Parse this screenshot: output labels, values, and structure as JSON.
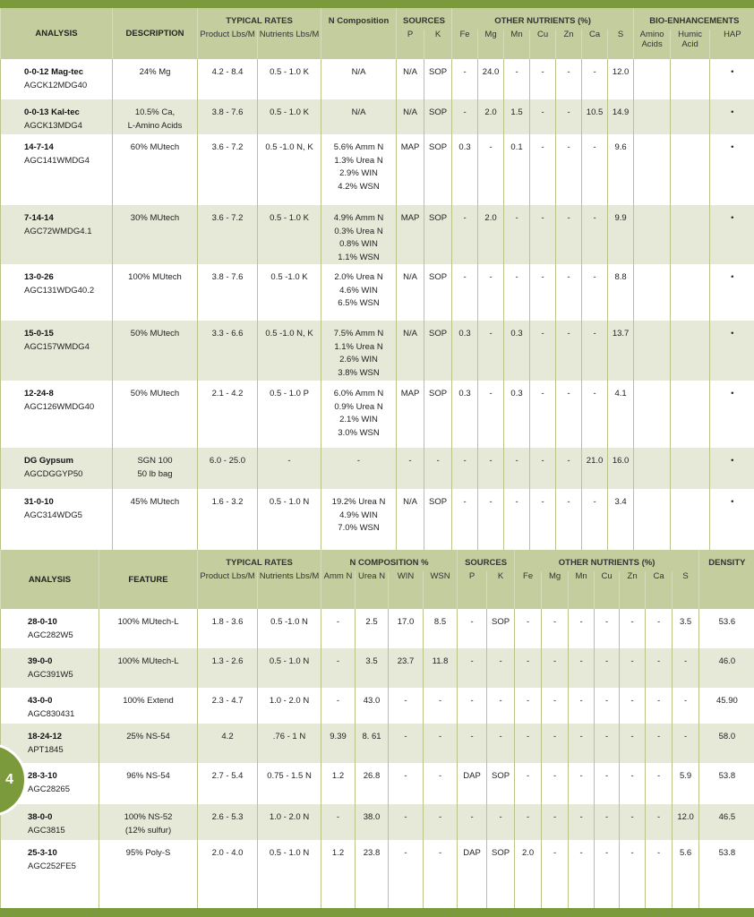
{
  "table1": {
    "headers": {
      "analysis": "ANALYSIS",
      "description": "DESCRIPTION",
      "typical_rates": "TYPICAL RATES",
      "product": "Product Lbs/M",
      "nutrients": "Nutrients Lbs/M",
      "n_composition": "N Composition",
      "sources": "SOURCES",
      "p": "P",
      "k": "K",
      "other_nutrients": "OTHER NUTRIENTS (%)",
      "fe": "Fe",
      "mg": "Mg",
      "mn": "Mn",
      "cu": "Cu",
      "zn": "Zn",
      "ca": "Ca",
      "s": "S",
      "bio": "BIO-ENHANCEMENTS",
      "amino": "Amino Acids",
      "humic": "Humic Acid",
      "hap": "HAP"
    },
    "rows": [
      {
        "analysis": "0-0-12 Mag-tec",
        "code": "AGCK12MDG40",
        "description": [
          "24% Mg"
        ],
        "product": "4.2 - 8.4",
        "nutrients": "0.5 - 1.0 K",
        "n_comp": [
          "N/A"
        ],
        "p": "N/A",
        "k": "SOP",
        "fe": "-",
        "mg": "24.0",
        "mn": "-",
        "cu": "-",
        "zn": "-",
        "ca": "-",
        "s": "12.0",
        "amino": "",
        "humic": "",
        "hap": "•"
      },
      {
        "analysis": "0-0-13 Kal-tec",
        "code": "AGCK13MDG4",
        "description": [
          "10.5% Ca,",
          "L-Amino Acids"
        ],
        "product": "3.8 - 7.6",
        "nutrients": "0.5 - 1.0 K",
        "n_comp": [
          "N/A"
        ],
        "p": "N/A",
        "k": "SOP",
        "fe": "-",
        "mg": "2.0",
        "mn": "1.5",
        "cu": "-",
        "zn": "-",
        "ca": "10.5",
        "s": "14.9",
        "amino": "",
        "humic": "",
        "hap": "•"
      },
      {
        "analysis": "14-7-14",
        "code": "AGC141WMDG4",
        "description": [
          "60% MUtech"
        ],
        "product": "3.6 - 7.2",
        "nutrients": "0.5 -1.0 N, K",
        "n_comp": [
          "5.6% Amm N",
          "1.3% Urea N",
          "2.9% WIN",
          "4.2% WSN"
        ],
        "p": "MAP",
        "k": "SOP",
        "fe": "0.3",
        "mg": "-",
        "mn": "0.1",
        "cu": "-",
        "zn": "-",
        "ca": "-",
        "s": "9.6",
        "amino": "",
        "humic": "",
        "hap": "•"
      },
      {
        "analysis": "7-14-14",
        "code": "AGC72WMDG4.1",
        "description": [
          "30% MUtech"
        ],
        "product": "3.6 - 7.2",
        "nutrients": "0.5 - 1.0 K",
        "n_comp": [
          "4.9% Amm N",
          "0.3% Urea N",
          "0.8% WIN",
          "1.1% WSN"
        ],
        "p": "MAP",
        "k": "SOP",
        "fe": "-",
        "mg": "2.0",
        "mn": "-",
        "cu": "-",
        "zn": "-",
        "ca": "-",
        "s": "9.9",
        "amino": "",
        "humic": "",
        "hap": "•"
      },
      {
        "analysis": "13-0-26",
        "code": "AGC131WDG40.2",
        "description": [
          "100% MUtech"
        ],
        "product": "3.8 - 7.6",
        "nutrients": "0.5 -1.0 K",
        "n_comp": [
          "2.0% Urea N",
          "4.6% WIN",
          "6.5% WSN"
        ],
        "p": "N/A",
        "k": "SOP",
        "fe": "-",
        "mg": "-",
        "mn": "-",
        "cu": "-",
        "zn": "-",
        "ca": "-",
        "s": "8.8",
        "amino": "",
        "humic": "",
        "hap": "•"
      },
      {
        "analysis": "15-0-15",
        "code": "AGC157WMDG4",
        "description": [
          "50% MUtech"
        ],
        "product": "3.3 - 6.6",
        "nutrients": "0.5 -1.0 N, K",
        "n_comp": [
          "7.5% Amm N",
          "1.1% Urea N",
          "2.6% WIN",
          "3.8% WSN"
        ],
        "p": "N/A",
        "k": "SOP",
        "fe": "0.3",
        "mg": "-",
        "mn": "0.3",
        "cu": "-",
        "zn": "-",
        "ca": "-",
        "s": "13.7",
        "amino": "",
        "humic": "",
        "hap": "•"
      },
      {
        "analysis": "12-24-8",
        "code": "AGC126WMDG40",
        "description": [
          "50% MUtech"
        ],
        "product": "2.1 - 4.2",
        "nutrients": "0.5 - 1.0 P",
        "n_comp": [
          "6.0% Amm N",
          "0.9% Urea N",
          "2.1% WIN",
          "3.0% WSN"
        ],
        "p": "MAP",
        "k": "SOP",
        "fe": "0.3",
        "mg": "-",
        "mn": "0.3",
        "cu": "-",
        "zn": "-",
        "ca": "-",
        "s": "4.1",
        "amino": "",
        "humic": "",
        "hap": "•"
      },
      {
        "analysis": "DG Gypsum",
        "code": "AGCDGGYP50",
        "description": [
          "SGN 100",
          "50 lb bag"
        ],
        "product": "6.0 - 25.0",
        "nutrients": "-",
        "n_comp": [
          "-"
        ],
        "p": "-",
        "k": "-",
        "fe": "-",
        "mg": "-",
        "mn": "-",
        "cu": "-",
        "zn": "-",
        "ca": "21.0",
        "s": "16.0",
        "amino": "",
        "humic": "",
        "hap": "•"
      },
      {
        "analysis": "31-0-10",
        "code": "AGC314WDG5",
        "description": [
          "45% MUtech"
        ],
        "product": "1.6 - 3.2",
        "nutrients": "0.5 - 1.0 N",
        "n_comp": [
          "19.2% Urea N",
          "4.9% WIN",
          "7.0% WSN"
        ],
        "p": "N/A",
        "k": "SOP",
        "fe": "-",
        "mg": "-",
        "mn": "-",
        "cu": "-",
        "zn": "-",
        "ca": "-",
        "s": "3.4",
        "amino": "",
        "humic": "",
        "hap": "•"
      }
    ]
  },
  "table2": {
    "headers": {
      "analysis": "ANALYSIS",
      "feature": "FEATURE",
      "typical_rates": "TYPICAL RATES",
      "product": "Product Lbs/M",
      "nutrients": "Nutrients Lbs/M",
      "n_composition": "N COMPOSITION %",
      "amm": "Amm N",
      "urea": "Urea N",
      "win": "WIN",
      "wsn": "WSN",
      "sources": "SOURCES",
      "p": "P",
      "k": "K",
      "other_nutrients": "OTHER NUTRIENTS (%)",
      "fe": "Fe",
      "mg": "Mg",
      "mn": "Mn",
      "cu": "Cu",
      "zn": "Zn",
      "ca": "Ca",
      "s": "S",
      "density": "DENSITY"
    },
    "rows": [
      {
        "analysis": "28-0-10",
        "code": "AGC282W5",
        "feature": [
          "100% MUtech-L"
        ],
        "product": "1.8 - 3.6",
        "nutrients": "0.5 -1.0 N",
        "amm": "-",
        "urea": "2.5",
        "win": "17.0",
        "wsn": "8.5",
        "p": "-",
        "k": "SOP",
        "fe": "-",
        "mg": "-",
        "mn": "-",
        "cu": "-",
        "zn": "-",
        "ca": "-",
        "s": "3.5",
        "density": "53.6"
      },
      {
        "analysis": "39-0-0",
        "code": "AGC391W5",
        "feature": [
          "100% MUtech-L"
        ],
        "product": "1.3 - 2.6",
        "nutrients": "0.5 - 1.0 N",
        "amm": "-",
        "urea": "3.5",
        "win": "23.7",
        "wsn": "11.8",
        "p": "-",
        "k": "-",
        "fe": "-",
        "mg": "-",
        "mn": "-",
        "cu": "-",
        "zn": "-",
        "ca": "-",
        "s": "-",
        "density": "46.0"
      },
      {
        "analysis": "43-0-0",
        "code": "AGC830431",
        "feature": [
          "100% Extend"
        ],
        "product": "2.3 - 4.7",
        "nutrients": "1.0 - 2.0 N",
        "amm": "-",
        "urea": "43.0",
        "win": "-",
        "wsn": "-",
        "p": "-",
        "k": "-",
        "fe": "-",
        "mg": "-",
        "mn": "-",
        "cu": "-",
        "zn": "-",
        "ca": "-",
        "s": "-",
        "density": "45.90"
      },
      {
        "analysis": "18-24-12",
        "code": "APT1845",
        "feature": [
          "25% NS-54"
        ],
        "product": "4.2",
        "nutrients": ".76 - 1 N",
        "amm": "9.39",
        "urea": "8. 61",
        "win": "-",
        "wsn": "-",
        "p": "-",
        "k": "-",
        "fe": "-",
        "mg": "-",
        "mn": "-",
        "cu": "-",
        "zn": "-",
        "ca": "-",
        "s": "-",
        "density": "58.0"
      },
      {
        "analysis": "28-3-10",
        "code": "AGC28265",
        "feature": [
          "96% NS-54"
        ],
        "product": "2.7 - 5.4",
        "nutrients": "0.75 - 1.5 N",
        "amm": "1.2",
        "urea": "26.8",
        "win": "-",
        "wsn": "-",
        "p": "DAP",
        "k": "SOP",
        "fe": "-",
        "mg": "-",
        "mn": "-",
        "cu": "-",
        "zn": "-",
        "ca": "-",
        "s": "5.9",
        "density": "53.8"
      },
      {
        "analysis": "38-0-0",
        "code": "AGC3815",
        "feature": [
          "100% NS-52",
          "(12% sulfur)"
        ],
        "product": "2.6 - 5.3",
        "nutrients": "1.0 - 2.0 N",
        "amm": "-",
        "urea": "38.0",
        "win": "-",
        "wsn": "-",
        "p": "-",
        "k": "-",
        "fe": "-",
        "mg": "-",
        "mn": "-",
        "cu": "-",
        "zn": "-",
        "ca": "-",
        "s": "12.0",
        "density": "46.5"
      },
      {
        "analysis": "25-3-10",
        "code": "AGC252FE5",
        "feature": [
          "95% Poly-S"
        ],
        "product": "2.0 - 4.0",
        "nutrients": "0.5 - 1.0 N",
        "amm": "1.2",
        "urea": "23.8",
        "win": "-",
        "wsn": "-",
        "p": "DAP",
        "k": "SOP",
        "fe": "2.0",
        "mg": "-",
        "mn": "-",
        "cu": "-",
        "zn": "-",
        "ca": "-",
        "s": "5.6",
        "density": "53.8"
      }
    ]
  },
  "page_number": "4",
  "colors": {
    "dark_green": "#7b9a3c",
    "header_green": "#c3cd9e",
    "alt_row": "#e6e8d8"
  }
}
